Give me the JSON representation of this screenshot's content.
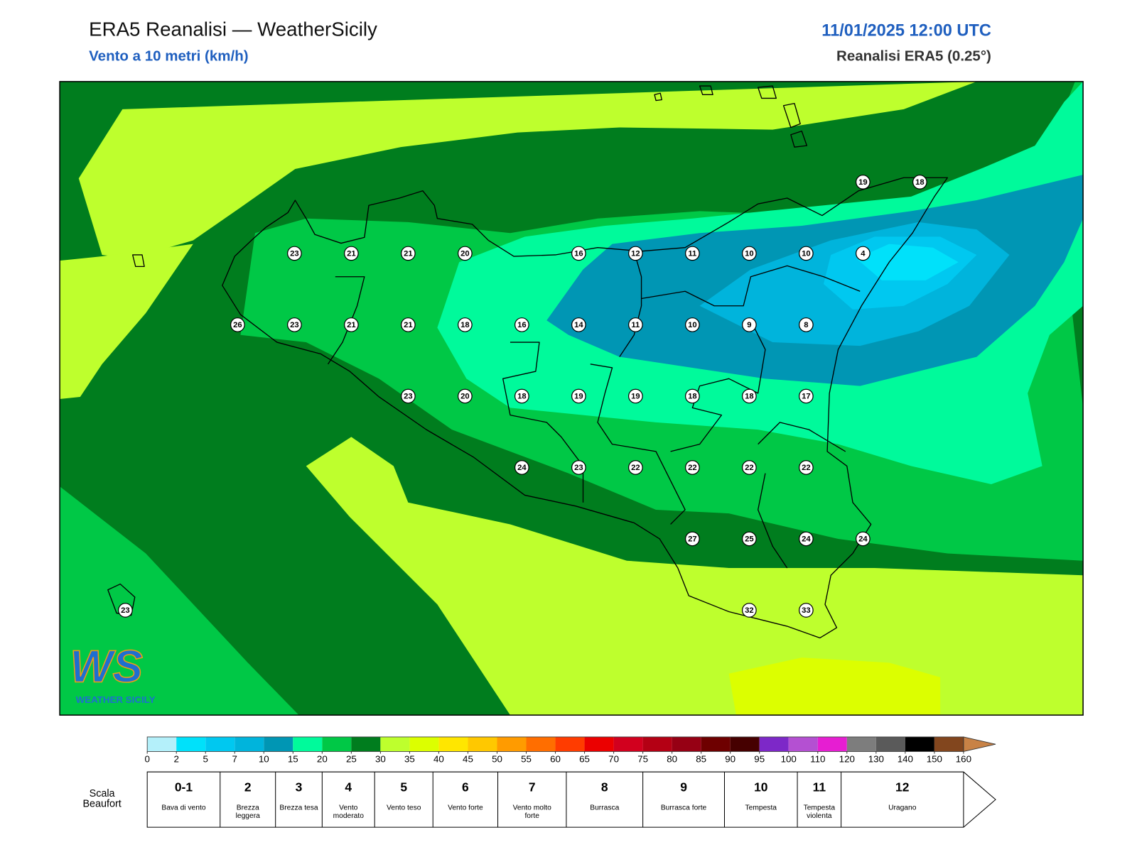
{
  "header": {
    "title": "ERA5 Reanalisi — WeatherSicily",
    "subtitle": "Vento a 10 metri (km/h)",
    "datetime": "11/01/2025 12:00 UTC",
    "source": "Reanalisi ERA5 (0.25°)"
  },
  "stations": [
    23,
    21,
    21,
    20,
    16,
    12,
    11,
    10,
    10,
    4,
    26,
    23,
    21,
    21,
    18,
    16,
    14,
    11,
    10,
    9,
    8,
    23,
    20,
    18,
    19,
    19,
    18,
    18,
    17,
    24,
    23,
    22,
    22,
    22,
    22,
    27,
    25,
    24,
    24,
    32,
    33,
    23,
    19,
    18
  ],
  "colorbar": {
    "ticks": [
      0,
      2,
      5,
      7,
      10,
      15,
      20,
      25,
      30,
      35,
      40,
      45,
      50,
      55,
      60,
      65,
      70,
      75,
      80,
      85,
      90,
      95,
      100,
      110,
      120,
      130,
      140,
      150,
      160
    ],
    "colors": [
      "#b4f0fa",
      "#00e1fa",
      "#00c8f0",
      "#00b4dc",
      "#0096b4",
      "#00fa9b",
      "#00c846",
      "#007d1e",
      "#beff2d",
      "#dcff00",
      "#ffe600",
      "#ffc800",
      "#ff9b00",
      "#ff6e00",
      "#ff3c00",
      "#eb0000",
      "#d2001e",
      "#b40014",
      "#960014",
      "#6e0000",
      "#460000",
      "#7d28c8",
      "#b450d2",
      "#e61ed2",
      "#7d7d7d",
      "#5a5a5a",
      "#000000",
      "#82461e"
    ],
    "extend_color": "#c88246"
  },
  "beaufort": {
    "label": "Scala Beaufort",
    "classes": [
      {
        "force": "0-1",
        "name": "Bava di vento"
      },
      {
        "force": "2",
        "name": "Brezza leggera"
      },
      {
        "force": "3",
        "name": "Brezza tesa"
      },
      {
        "force": "4",
        "name": "Vento moderato"
      },
      {
        "force": "5",
        "name": "Vento teso"
      },
      {
        "force": "6",
        "name": "Vento forte"
      },
      {
        "force": "7",
        "name": "Vento molto forte"
      },
      {
        "force": "8",
        "name": "Burrasca"
      },
      {
        "force": "9",
        "name": "Burrasca forte"
      },
      {
        "force": "10",
        "name": "Tempesta"
      },
      {
        "force": "11",
        "name": "Tempesta violenta"
      },
      {
        "force": "12",
        "name": "Uragano"
      }
    ]
  },
  "logo": {
    "mark": "WS",
    "name": "WEATHER SICILY"
  }
}
